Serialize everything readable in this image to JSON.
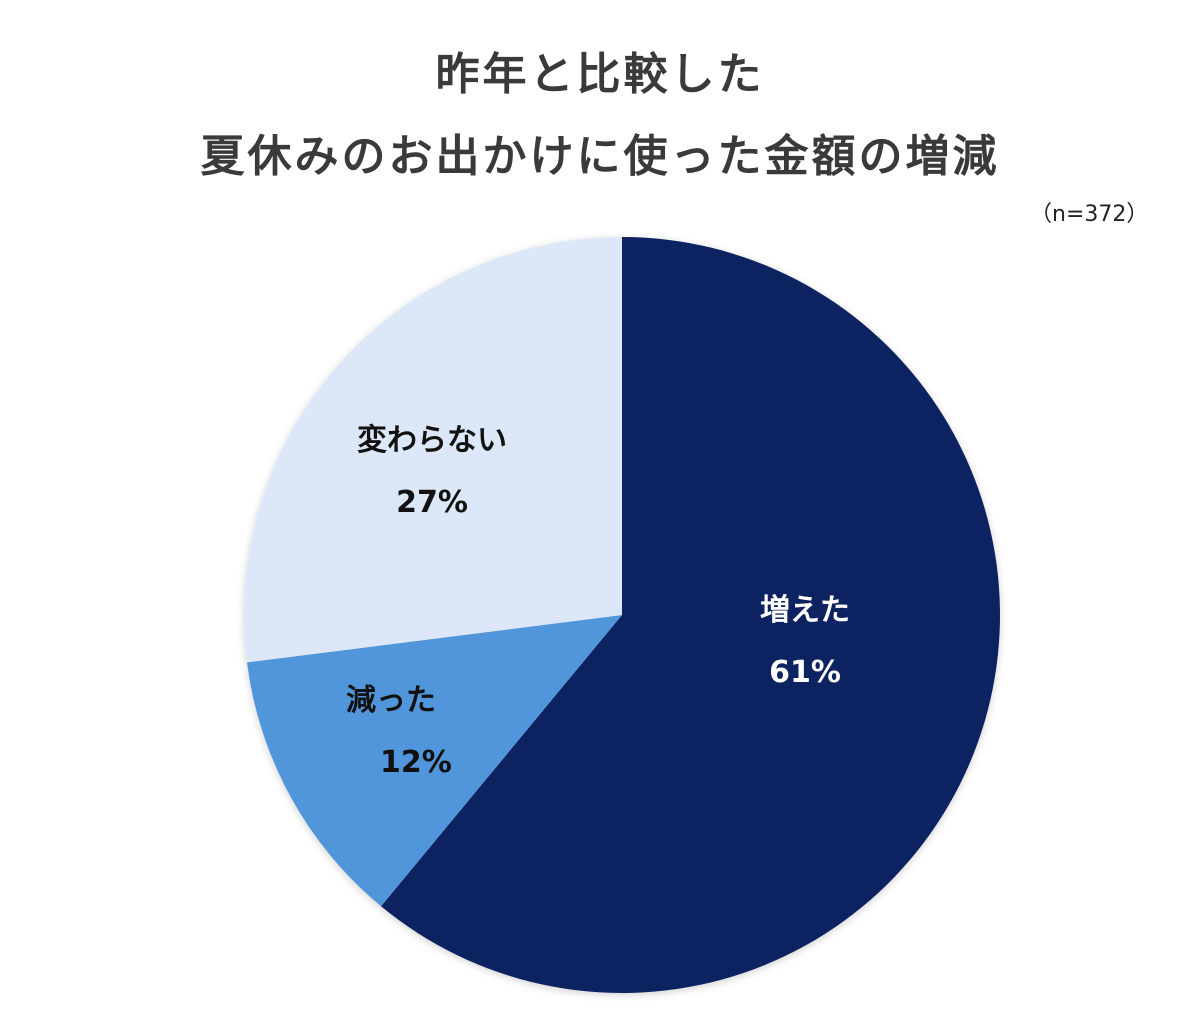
{
  "chart_data": {
    "type": "pie",
    "title": "昨年と比較した 夏休みのお出かけに使った金額の増減",
    "title_lines": [
      "昨年と比較した",
      "夏休みのお出かけに使った金額の増減"
    ],
    "sample_note": "（n=372）",
    "categories": [
      "増えた",
      "減った",
      "変わらない"
    ],
    "values": [
      61,
      12,
      27
    ],
    "labels": [
      "61%",
      "12%",
      "27%"
    ],
    "colors": [
      "#0b2060",
      "#5196db",
      "#dce8f8"
    ],
    "start_angle": "12 o'clock, clockwise",
    "legend": "none (inline labels)"
  }
}
